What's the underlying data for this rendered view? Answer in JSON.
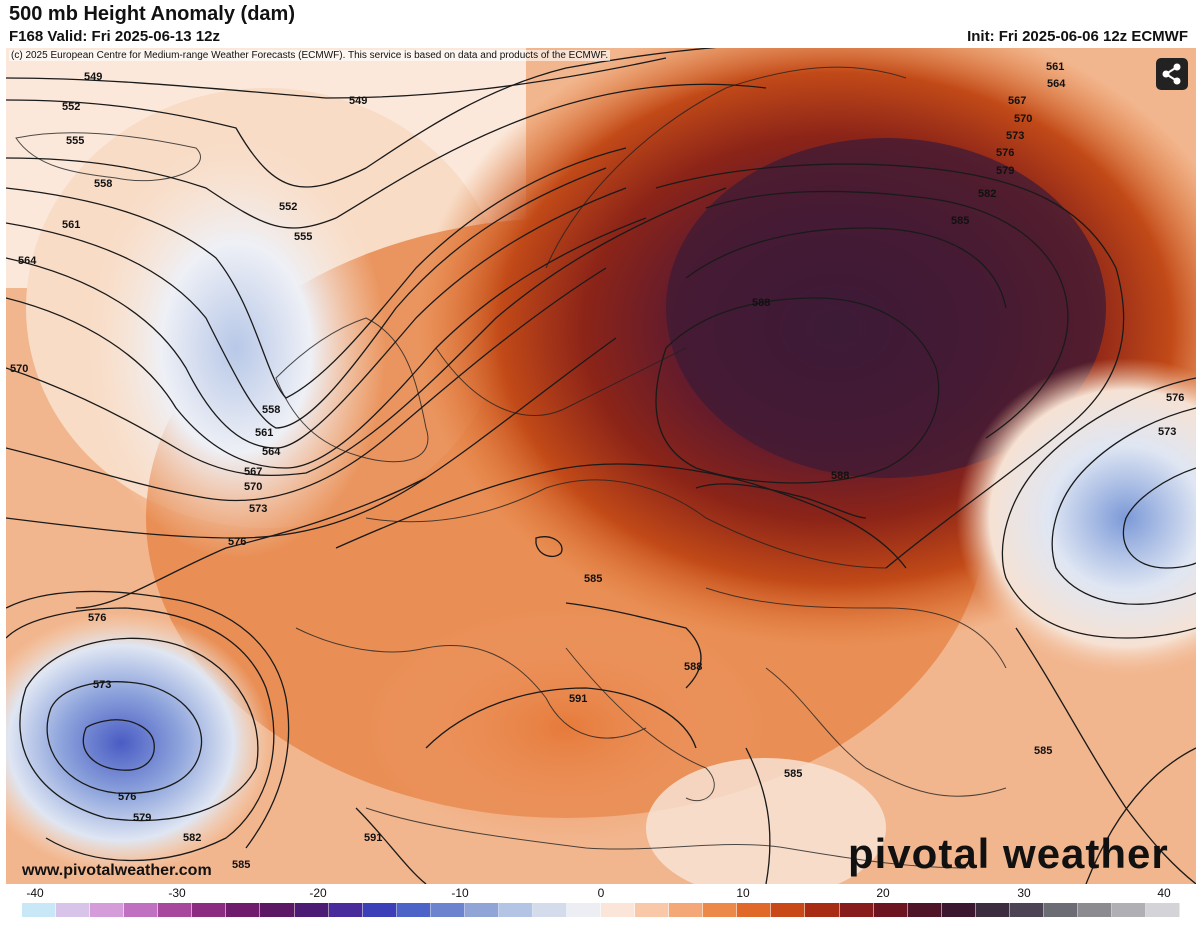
{
  "header": {
    "title": "500 mb Height Anomaly (dam)",
    "valid": "F168 Valid: Fri 2025-06-13 12z",
    "init": "Init: Fri 2025-06-06 12z ECMWF"
  },
  "map": {
    "copyright": "(c) 2025 European Centre for Medium-range Weather Forecasts (ECMWF). This service is based on data and products of the ECMWF.",
    "contour_labels": [
      "549",
      "552",
      "555",
      "558",
      "561",
      "564",
      "567",
      "570",
      "573",
      "576",
      "579",
      "582",
      "585",
      "588",
      "591"
    ],
    "share_icon": "share-icon"
  },
  "footer": {
    "url": "www.pivotalweather.com",
    "brand": "pivotal weather"
  },
  "colorbar": {
    "ticks": [
      "-40",
      "-30",
      "-20",
      "-10",
      "0",
      "10",
      "20",
      "30",
      "40"
    ],
    "min": -40,
    "max": 40,
    "colors": [
      "#c8e8f8",
      "#d8c4e8",
      "#d49cd8",
      "#c070c0",
      "#a8489c",
      "#8c2c80",
      "#701c6c",
      "#5c1864",
      "#4c1c74",
      "#482c9c",
      "#3c40b8",
      "#4c64c8",
      "#6c84d0",
      "#90a4d8",
      "#b4c4e4",
      "#d4dcec",
      "#eceef4",
      "#fbe4d8",
      "#f8c8a8",
      "#f4a878",
      "#ec8848",
      "#e06828",
      "#c84818",
      "#a82c14",
      "#881c1c",
      "#6c1420",
      "#501428",
      "#3c1830",
      "#3c2c40",
      "#4c4454",
      "#6c6c74",
      "#8c8c90",
      "#b0b0b4",
      "#d4d4d8"
    ]
  }
}
